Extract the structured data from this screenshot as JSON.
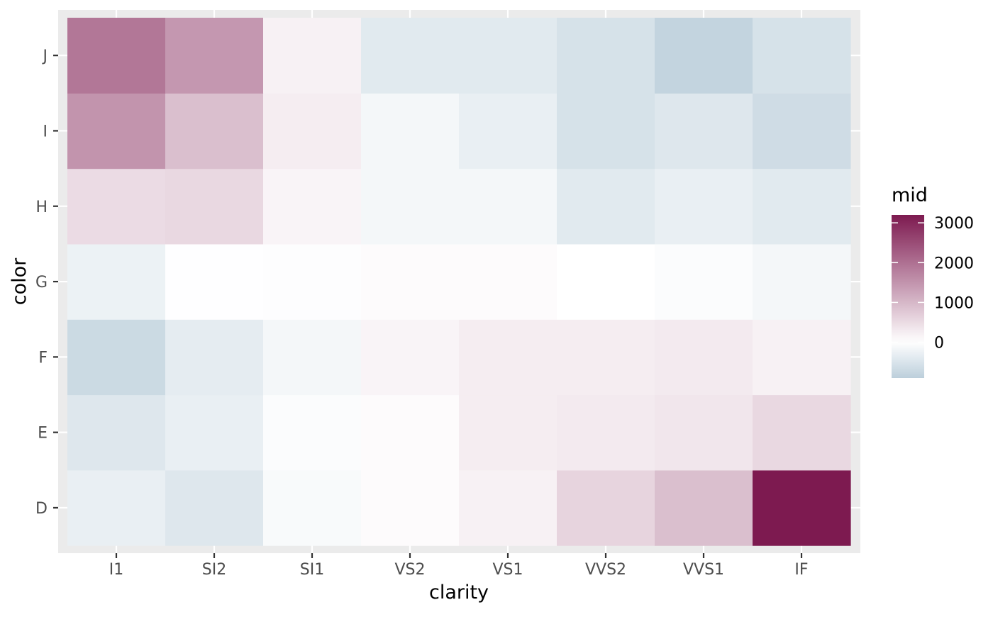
{
  "chart_data": {
    "type": "heatmap",
    "title": "",
    "xlabel": "clarity",
    "ylabel": "color",
    "x_categories": [
      "I1",
      "SI2",
      "SI1",
      "VS2",
      "VS1",
      "VVS2",
      "VVS1",
      "IF"
    ],
    "y_categories": [
      "D",
      "E",
      "F",
      "G",
      "H",
      "I",
      "J"
    ],
    "fill_label": "mid",
    "fill_range": [
      -900,
      3200
    ],
    "legend_breaks": [
      0,
      1000,
      2000,
      3000
    ],
    "legend_position": "right",
    "grid": true,
    "colors": {
      "low": "#bccfdb",
      "mid": "#ffffff",
      "high": "#7d1a50",
      "panel_background": "#ebebeb",
      "grid_line": "#ffffff",
      "tick_text": "#4d4d4d",
      "tick_mark": "#333333",
      "axis_title": "#000000"
    },
    "values": [
      [
        -300,
        -450,
        -100,
        60,
        200,
        600,
        900,
        3200
      ],
      [
        -450,
        -300,
        -50,
        50,
        250,
        300,
        350,
        550
      ],
      [
        -700,
        -350,
        -150,
        150,
        250,
        250,
        300,
        200
      ],
      [
        -250,
        -10,
        -30,
        50,
        60,
        0,
        -50,
        -150
      ],
      [
        500,
        550,
        150,
        -150,
        -150,
        -400,
        -300,
        -400
      ],
      [
        1500,
        900,
        250,
        -150,
        -300,
        -550,
        -450,
        -650
      ],
      [
        1900,
        1450,
        200,
        -400,
        -400,
        -550,
        -800,
        -550
      ]
    ]
  }
}
